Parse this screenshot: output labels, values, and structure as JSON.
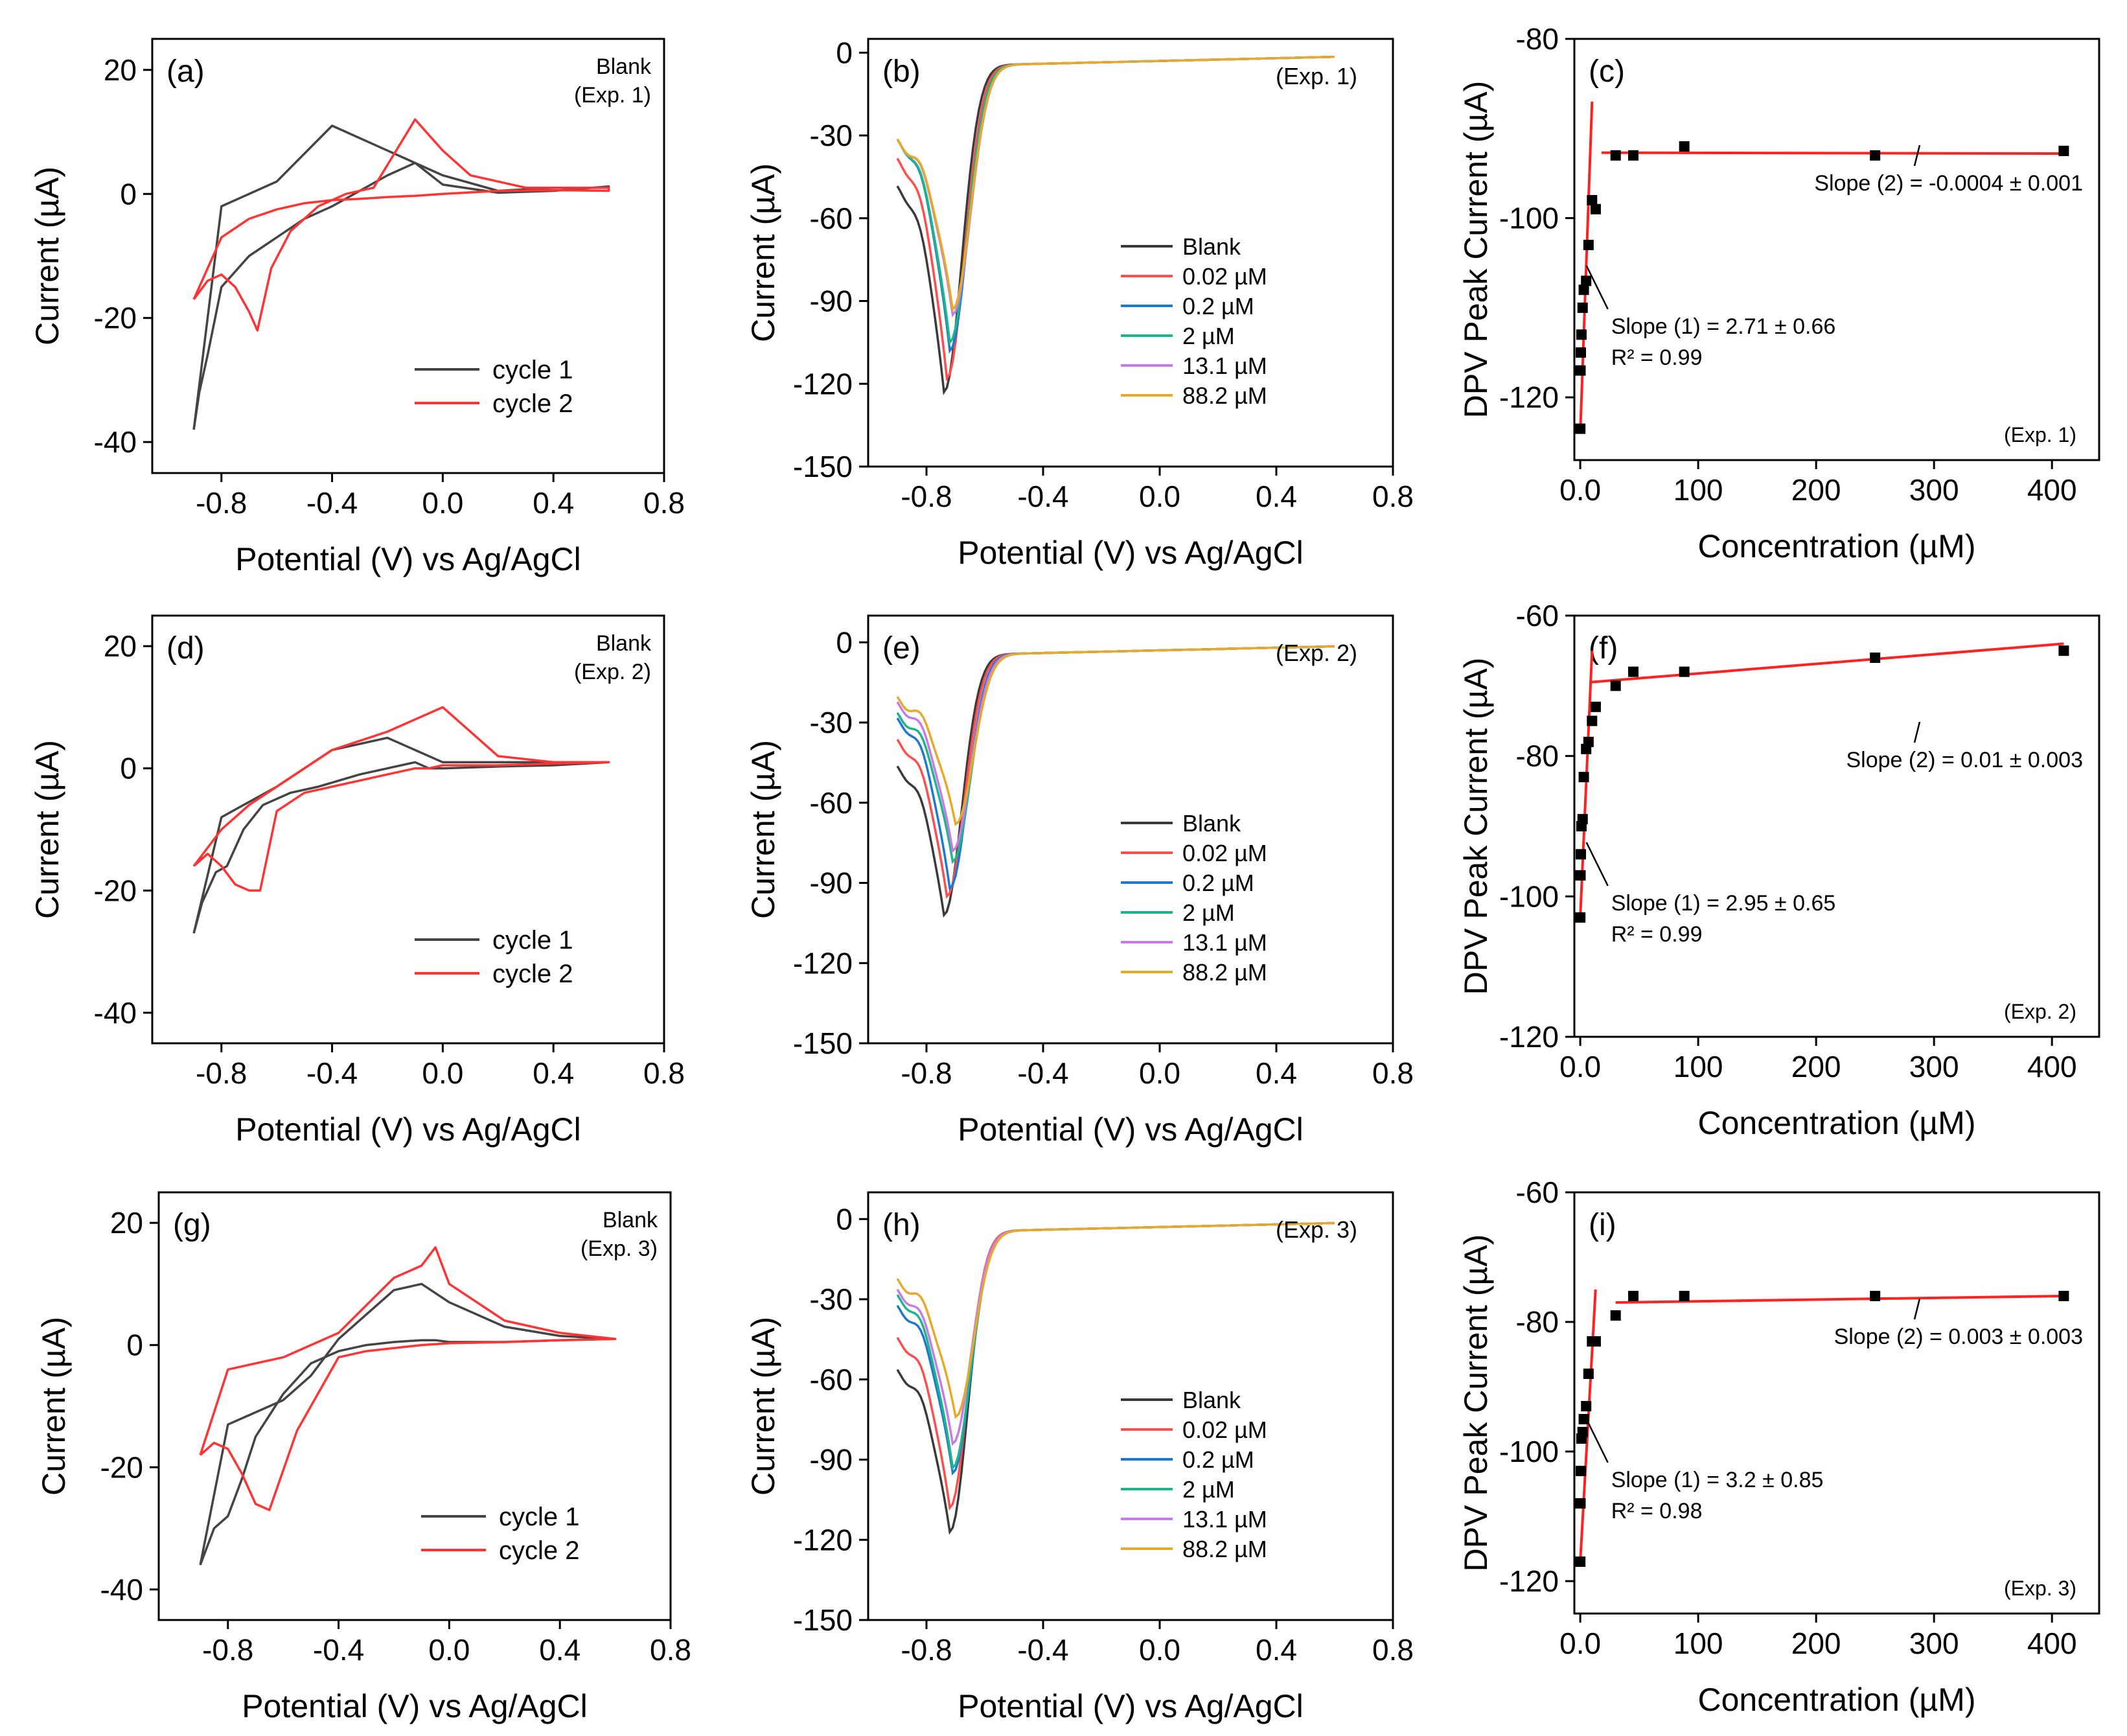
{
  "figure": {
    "xlabel_cv": "Potential (V) vs Ag/AgCl",
    "xlabel_cal": "Concentration (µM)"
  },
  "colors": {
    "cycle1": "#444444",
    "cycle2": "#ff3333",
    "blank": "#3a3a3a",
    "c002": "#ff4d4d",
    "c02": "#1f77d4",
    "c2": "#1fb58a",
    "c131": "#c77be8",
    "c882": "#e6a92a",
    "fit": "#ff2020"
  },
  "chart_data": [
    {
      "panel": "(a)",
      "type": "line",
      "note": "Blank\n(Exp. 1)",
      "xlabel": "Potential (V) vs Ag/AgCl",
      "ylabel": "Current (µA)",
      "xlim": [
        -1.05,
        0.8
      ],
      "ylim": [
        -45,
        25
      ],
      "xticks": [
        -0.8,
        -0.4,
        0.0,
        0.4,
        0.8
      ],
      "yticks": [
        -40,
        -20,
        0,
        20
      ],
      "legend": {
        "position": "bottom-right",
        "entries": [
          "cycle 1",
          "cycle 2"
        ]
      },
      "series": [
        {
          "name": "cycle 1",
          "color": "cycle1",
          "x": [
            -0.9,
            -0.88,
            -0.85,
            -0.8,
            -0.7,
            -0.6,
            -0.5,
            -0.4,
            -0.3,
            -0.2,
            -0.1,
            0.0,
            0.2,
            0.4,
            0.6,
            0.6,
            0.4,
            0.2,
            0.0,
            -0.2,
            -0.4,
            -0.6,
            -0.8,
            -0.9
          ],
          "y": [
            -38,
            -32,
            -26,
            -15,
            -10,
            -7,
            -4,
            -2,
            0.5,
            3,
            5,
            1.5,
            0.2,
            0.5,
            1.2,
            1,
            1,
            0.5,
            3,
            7,
            11,
            2,
            -2,
            -38
          ]
        },
        {
          "name": "cycle 2",
          "color": "cycle2",
          "x": [
            -0.9,
            -0.85,
            -0.8,
            -0.75,
            -0.7,
            -0.67,
            -0.62,
            -0.55,
            -0.45,
            -0.35,
            -0.25,
            -0.1,
            0.0,
            0.1,
            0.3,
            0.6,
            0.6,
            0.4,
            0.2,
            0.0,
            -0.1,
            -0.2,
            -0.3,
            -0.4,
            -0.5,
            -0.6,
            -0.7,
            -0.8,
            -0.9
          ],
          "y": [
            -17,
            -14,
            -13,
            -15,
            -19,
            -22,
            -12,
            -6,
            -2,
            0,
            1,
            12,
            7,
            3,
            1,
            1,
            0.5,
            0.6,
            0.5,
            0,
            -0.3,
            -0.5,
            -0.8,
            -1,
            -1.5,
            -2.5,
            -4,
            -7,
            -17
          ]
        }
      ]
    },
    {
      "panel": "(b)",
      "type": "line",
      "note": "(Exp. 1)",
      "xlabel": "Potential (V) vs Ag/AgCl",
      "ylabel": "Current (µA)",
      "xlim": [
        -1.0,
        0.8
      ],
      "ylim": [
        -150,
        5
      ],
      "xticks": [
        -0.8,
        -0.4,
        0.0,
        0.4,
        0.8
      ],
      "yticks": [
        -150,
        -120,
        -90,
        -60,
        -30,
        0
      ],
      "legend": {
        "position": "bottom-right",
        "entries": [
          "Blank",
          "0.02 µM",
          "0.2 µM",
          "2 µM",
          "13.1 µM",
          "88.2 µM"
        ]
      },
      "series": [
        {
          "name": "Blank",
          "color": "blank",
          "start": -50,
          "peak": -123,
          "peakx": -0.74
        },
        {
          "name": "0.02 µM",
          "color": "c002",
          "start": -40,
          "peak": -118,
          "peakx": -0.73
        },
        {
          "name": "0.2 µM",
          "color": "c02",
          "start": -33,
          "peak": -108,
          "peakx": -0.72
        },
        {
          "name": "2 µM",
          "color": "c2",
          "start": -33,
          "peak": -105,
          "peakx": -0.72
        },
        {
          "name": "13.1 µM",
          "color": "c131",
          "start": -33,
          "peak": -95,
          "peakx": -0.71
        },
        {
          "name": "88.2 µM",
          "color": "c882",
          "start": -33,
          "peak": -93,
          "peakx": -0.71
        }
      ]
    },
    {
      "panel": "(c)",
      "type": "scatter",
      "note": "(Exp. 1)",
      "xlabel": "Concentration (µM)",
      "ylabel": "DPV Peak Current (µA)",
      "xlim": [
        -5,
        440
      ],
      "ylim": [
        -127,
        -80
      ],
      "xticks": [
        0,
        100,
        200,
        300,
        400
      ],
      "yticks": [
        -120,
        -100,
        -80
      ],
      "x": [
        0.02,
        0.2,
        0.5,
        1,
        2,
        3,
        5,
        7,
        10,
        13.1,
        30,
        45,
        88.2,
        250,
        410
      ],
      "y": [
        -123.5,
        -117,
        -115,
        -113,
        -110,
        -108,
        -107,
        -103,
        -98,
        -99,
        -93,
        -93,
        -92,
        -93,
        -92.5
      ],
      "fit1": {
        "x": [
          0,
          10
        ],
        "y": [
          -124,
          -87
        ]
      },
      "fit2": {
        "x": [
          18,
          410
        ],
        "y": [
          -92.7,
          -92.8
        ]
      },
      "annotations": {
        "slope1": "Slope (1) = 2.71 ± 0.66",
        "r2": "R² = 0.99",
        "slope2": "Slope (2) = -0.0004 ± 0.001"
      }
    },
    {
      "panel": "(d)",
      "type": "line",
      "note": "Blank\n(Exp. 2)",
      "xlabel": "Potential (V) vs Ag/AgCl",
      "ylabel": "Current (µA)",
      "xlim": [
        -1.05,
        0.8
      ],
      "ylim": [
        -45,
        25
      ],
      "xticks": [
        -0.8,
        -0.4,
        0.0,
        0.4,
        0.8
      ],
      "yticks": [
        -40,
        -20,
        0,
        20
      ],
      "legend": {
        "position": "bottom-right",
        "entries": [
          "cycle 1",
          "cycle 2"
        ]
      },
      "series": [
        {
          "name": "cycle 1",
          "color": "cycle1",
          "x": [
            -0.9,
            -0.87,
            -0.82,
            -0.78,
            -0.72,
            -0.65,
            -0.55,
            -0.45,
            -0.3,
            -0.2,
            -0.1,
            -0.05,
            0.0,
            0.2,
            0.4,
            0.6,
            0.6,
            0.4,
            0.2,
            0.0,
            -0.2,
            -0.4,
            -0.6,
            -0.8,
            -0.9
          ],
          "y": [
            -27,
            -22,
            -17,
            -16,
            -10,
            -6,
            -4,
            -3,
            -1,
            0,
            1,
            0,
            0,
            0.3,
            0.5,
            1,
            1,
            1,
            1,
            1,
            5,
            3,
            -3,
            -8,
            -27
          ]
        },
        {
          "name": "cycle 2",
          "color": "cycle2",
          "x": [
            -0.9,
            -0.85,
            -0.8,
            -0.75,
            -0.7,
            -0.66,
            -0.6,
            -0.5,
            -0.4,
            -0.3,
            -0.2,
            -0.1,
            -0.05,
            0.0,
            0.2,
            0.4,
            0.6,
            0.6,
            0.4,
            0.2,
            0.0,
            -0.2,
            -0.4,
            -0.5,
            -0.6,
            -0.7,
            -0.8,
            -0.9
          ],
          "y": [
            -16,
            -14,
            -16,
            -19,
            -20,
            -20,
            -7,
            -4,
            -3,
            -2,
            -1,
            0,
            0,
            0.5,
            0.5,
            0.8,
            1,
            1,
            1,
            2,
            10,
            6,
            3,
            0,
            -3,
            -6,
            -10,
            -16
          ]
        }
      ]
    },
    {
      "panel": "(e)",
      "type": "line",
      "note": "(Exp. 2)",
      "xlabel": "Potential (V) vs Ag/AgCl",
      "ylabel": "Current (µA)",
      "xlim": [
        -1.0,
        0.8
      ],
      "ylim": [
        -150,
        10
      ],
      "xticks": [
        -0.8,
        -0.4,
        0.0,
        0.4,
        0.8
      ],
      "yticks": [
        -150,
        -120,
        -90,
        -60,
        -30,
        0
      ],
      "legend": {
        "position": "bottom-right",
        "entries": [
          "Blank",
          "0.02 µM",
          "0.2 µM",
          "2 µM",
          "13.1 µM",
          "88.2 µM"
        ]
      },
      "series": [
        {
          "name": "Blank",
          "color": "blank",
          "start": -48,
          "peak": -102,
          "peakx": -0.74
        },
        {
          "name": "0.02 µM",
          "color": "c002",
          "start": -38,
          "peak": -95,
          "peakx": -0.73
        },
        {
          "name": "0.2 µM",
          "color": "c02",
          "start": -30,
          "peak": -92,
          "peakx": -0.72
        },
        {
          "name": "2 µM",
          "color": "c2",
          "start": -28,
          "peak": -82,
          "peakx": -0.71
        },
        {
          "name": "13.1 µM",
          "color": "c131",
          "start": -24,
          "peak": -78,
          "peakx": -0.71
        },
        {
          "name": "88.2 µM",
          "color": "c882",
          "start": -22,
          "peak": -68,
          "peakx": -0.7
        }
      ]
    },
    {
      "panel": "(f)",
      "type": "scatter",
      "note": "(Exp. 2)",
      "xlabel": "Concentration (µM)",
      "ylabel": "DPV Peak Current (µA)",
      "xlim": [
        -5,
        440
      ],
      "ylim": [
        -120,
        -60
      ],
      "xticks": [
        0,
        100,
        200,
        300,
        400
      ],
      "yticks": [
        -120,
        -100,
        -80,
        -60
      ],
      "x": [
        0.02,
        0.2,
        0.5,
        1,
        2,
        3,
        5,
        7,
        10,
        13.1,
        30,
        45,
        88.2,
        250,
        410
      ],
      "y": [
        -103,
        -97,
        -94,
        -90,
        -89,
        -83,
        -79,
        -78,
        -75,
        -73,
        -70,
        -68,
        -68,
        -66,
        -65
      ],
      "fit1": {
        "x": [
          0,
          10
        ],
        "y": [
          -103,
          -65
        ]
      },
      "fit2": {
        "x": [
          8,
          410
        ],
        "y": [
          -69.5,
          -64
        ]
      },
      "annotations": {
        "slope1": "Slope (1) = 2.95 ± 0.65",
        "r2": "R² = 0.99",
        "slope2": "Slope (2) = 0.01 ± 0.003"
      }
    },
    {
      "panel": "(g)",
      "type": "line",
      "note": "Blank\n(Exp. 3)",
      "xlabel": "Potential (V) vs Ag/AgCl",
      "ylabel": "Current (µA)",
      "xlim": [
        -1.05,
        0.8
      ],
      "ylim": [
        -45,
        25
      ],
      "xticks": [
        -0.8,
        -0.4,
        0.0,
        0.4,
        0.8
      ],
      "yticks": [
        -40,
        -20,
        0,
        20
      ],
      "legend": {
        "position": "bottom-right",
        "entries": [
          "cycle 1",
          "cycle 2"
        ]
      },
      "series": [
        {
          "name": "cycle 1",
          "color": "cycle1",
          "x": [
            -0.9,
            -0.85,
            -0.8,
            -0.75,
            -0.7,
            -0.6,
            -0.5,
            -0.4,
            -0.3,
            -0.2,
            -0.1,
            -0.05,
            0.0,
            0.2,
            0.4,
            0.6,
            0.6,
            0.4,
            0.2,
            0.0,
            -0.1,
            -0.2,
            -0.4,
            -0.5,
            -0.6,
            -0.8,
            -0.9
          ],
          "y": [
            -36,
            -30,
            -28,
            -22,
            -15,
            -8,
            -3,
            -1,
            0,
            0.5,
            0.8,
            0.8,
            0.5,
            0.5,
            0.8,
            1,
            1,
            1.5,
            3,
            7,
            10,
            9,
            1,
            -5,
            -9,
            -13,
            -36
          ]
        },
        {
          "name": "cycle 2",
          "color": "cycle2",
          "x": [
            -0.9,
            -0.85,
            -0.8,
            -0.75,
            -0.7,
            -0.65,
            -0.55,
            -0.4,
            -0.3,
            -0.2,
            -0.1,
            0.0,
            0.2,
            0.4,
            0.6,
            0.6,
            0.4,
            0.2,
            0.0,
            -0.05,
            -0.1,
            -0.2,
            -0.4,
            -0.6,
            -0.8,
            -0.9
          ],
          "y": [
            -18,
            -16,
            -17,
            -21,
            -26,
            -27,
            -14,
            -2,
            -1,
            -0.5,
            0,
            0.3,
            0.5,
            0.8,
            1,
            1,
            2,
            4,
            10,
            16,
            13,
            11,
            2,
            -2,
            -4,
            -18
          ]
        }
      ]
    },
    {
      "panel": "(h)",
      "type": "line",
      "note": "(Exp. 3)",
      "xlabel": "Potential (V) vs Ag/AgCl",
      "ylabel": "Current (µA)",
      "xlim": [
        -1.0,
        0.8
      ],
      "ylim": [
        -150,
        10
      ],
      "xticks": [
        -0.8,
        -0.4,
        0.0,
        0.4,
        0.8
      ],
      "yticks": [
        -150,
        -120,
        -90,
        -60,
        -30,
        0
      ],
      "legend": {
        "position": "bottom-right",
        "entries": [
          "Blank",
          "0.02 µM",
          "0.2 µM",
          "2 µM",
          "13.1 µM",
          "88.2 µM"
        ]
      },
      "series": [
        {
          "name": "Blank",
          "color": "blank",
          "start": -58,
          "peak": -117,
          "peakx": -0.72
        },
        {
          "name": "0.02 µM",
          "color": "c002",
          "start": -46,
          "peak": -108,
          "peakx": -0.72
        },
        {
          "name": "0.2 µM",
          "color": "c02",
          "start": -34,
          "peak": -95,
          "peakx": -0.71
        },
        {
          "name": "2 µM",
          "color": "c2",
          "start": -30,
          "peak": -93,
          "peakx": -0.71
        },
        {
          "name": "13.1 µM",
          "color": "c131",
          "start": -28,
          "peak": -84,
          "peakx": -0.71
        },
        {
          "name": "88.2 µM",
          "color": "c882",
          "start": -24,
          "peak": -74,
          "peakx": -0.7
        }
      ]
    },
    {
      "panel": "(i)",
      "type": "scatter",
      "note": "(Exp. 3)",
      "xlabel": "Concentration (µM)",
      "ylabel": "DPV Peak Current (µA)",
      "xlim": [
        -5,
        440
      ],
      "ylim": [
        -125,
        -60
      ],
      "xticks": [
        0,
        100,
        200,
        300,
        400
      ],
      "yticks": [
        -120,
        -100,
        -80,
        -60
      ],
      "x": [
        0.02,
        0.2,
        0.5,
        1,
        2,
        3,
        5,
        7,
        10,
        13.1,
        30,
        45,
        88.2,
        250,
        410
      ],
      "y": [
        -117,
        -108,
        -103,
        -98,
        -97,
        -95,
        -93,
        -88,
        -83,
        -83,
        -79,
        -76,
        -76,
        -76,
        -76
      ],
      "fit1": {
        "x": [
          0,
          13
        ],
        "y": [
          -117,
          -75
        ]
      },
      "fit2": {
        "x": [
          30,
          410
        ],
        "y": [
          -77,
          -76
        ]
      },
      "annotations": {
        "slope1": "Slope (1) = 3.2 ± 0.85",
        "r2": "R² = 0.98",
        "slope2": "Slope (2) = 0.003 ± 0.003"
      }
    }
  ]
}
